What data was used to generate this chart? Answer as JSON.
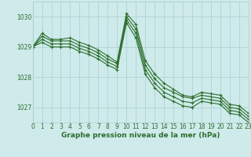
{
  "title": "Graphe pression niveau de la mer (hPa)",
  "background_color": "#ceeaea",
  "plot_bg_color": "#ceeaea",
  "grid_color": "#a8cfcf",
  "line_color": "#2d6e2d",
  "xlim": [
    0,
    23
  ],
  "ylim": [
    1026.5,
    1030.5
  ],
  "yticks": [
    1027,
    1028,
    1029,
    1030
  ],
  "xtick_labels": [
    "0",
    "1",
    "2",
    "3",
    "4",
    "5",
    "6",
    "7",
    "8",
    "9",
    "10",
    "11",
    "12",
    "13",
    "14",
    "15",
    "16",
    "17",
    "18",
    "19",
    "20",
    "21",
    "22",
    "23"
  ],
  "series": [
    [
      1029.0,
      1029.45,
      1029.25,
      1029.25,
      1029.3,
      1029.15,
      1029.05,
      1028.9,
      1028.7,
      1028.5,
      1030.1,
      1029.75,
      1028.55,
      1028.1,
      1027.8,
      1027.6,
      1027.4,
      1027.35,
      1027.5,
      1027.45,
      1027.4,
      1027.1,
      1027.05,
      1026.8
    ],
    [
      1029.0,
      1029.35,
      1029.2,
      1029.2,
      1029.2,
      1029.05,
      1028.95,
      1028.8,
      1028.6,
      1028.45,
      1030.0,
      1029.6,
      1028.4,
      1027.95,
      1027.65,
      1027.5,
      1027.35,
      1027.3,
      1027.4,
      1027.35,
      1027.3,
      1027.0,
      1026.95,
      1026.7
    ],
    [
      1029.0,
      1029.25,
      1029.1,
      1029.1,
      1029.1,
      1028.95,
      1028.85,
      1028.7,
      1028.5,
      1028.35,
      1029.9,
      1029.45,
      1028.25,
      1027.8,
      1027.5,
      1027.35,
      1027.2,
      1027.15,
      1027.3,
      1027.25,
      1027.2,
      1026.9,
      1026.85,
      1026.6
    ],
    [
      1029.0,
      1029.15,
      1029.0,
      1029.0,
      1029.0,
      1028.85,
      1028.75,
      1028.6,
      1028.4,
      1028.25,
      1029.8,
      1029.3,
      1028.1,
      1027.65,
      1027.35,
      1027.2,
      1027.05,
      1027.0,
      1027.2,
      1027.15,
      1027.1,
      1026.8,
      1026.75,
      1026.5
    ]
  ],
  "marker": "+",
  "marker_size": 3,
  "markeredgewidth": 0.8,
  "linewidth": 0.8,
  "title_fontsize": 6.5,
  "tick_fontsize": 5.5
}
